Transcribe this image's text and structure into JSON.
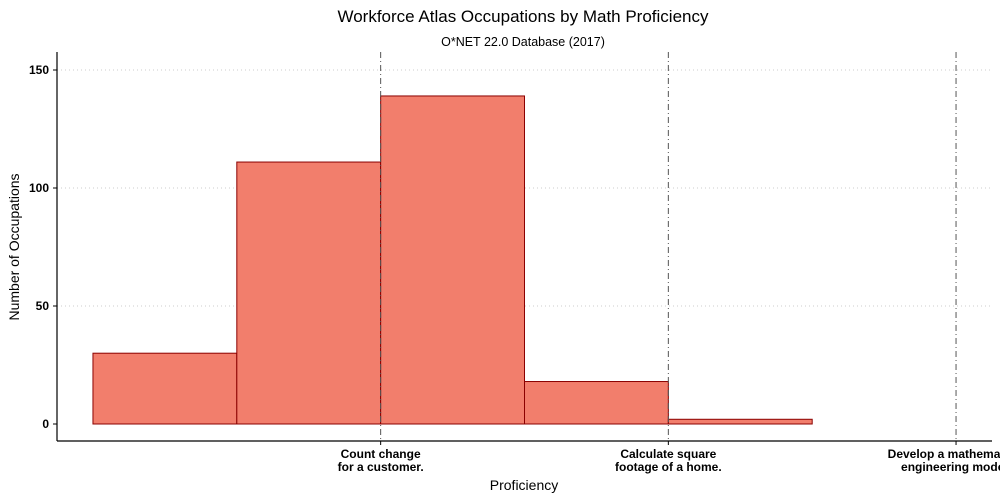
{
  "chart_data": {
    "type": "bar",
    "title": "Workforce Atlas Occupations by Math Proficiency",
    "subtitle": "O*NET 22.0 Database (2017)",
    "xlabel": "Proficiency",
    "ylabel": "Number of Occupations",
    "ylim": [
      0,
      155
    ],
    "xlim": [
      0.5,
      7.0
    ],
    "y_ticks": [
      0,
      50,
      100,
      150
    ],
    "grid": "horizontal dotted",
    "bar_fill": "#f27e6c",
    "bar_stroke": "#8b0000",
    "bins": [
      {
        "x0": 0.75,
        "x1": 1.75,
        "value": 30
      },
      {
        "x0": 1.75,
        "x1": 2.75,
        "value": 111
      },
      {
        "x0": 2.75,
        "x1": 3.75,
        "value": 139
      },
      {
        "x0": 3.75,
        "x1": 4.75,
        "value": 18
      },
      {
        "x0": 4.75,
        "x1": 5.75,
        "value": 2
      }
    ],
    "reference_lines": [
      {
        "x": 2.75,
        "label_lines": [
          "Count change",
          "for a customer."
        ]
      },
      {
        "x": 4.75,
        "label_lines": [
          "Calculate square",
          "footage of a home."
        ]
      },
      {
        "x": 6.75,
        "label_lines": [
          "Develop a mathematical",
          "engineering model."
        ]
      }
    ]
  }
}
